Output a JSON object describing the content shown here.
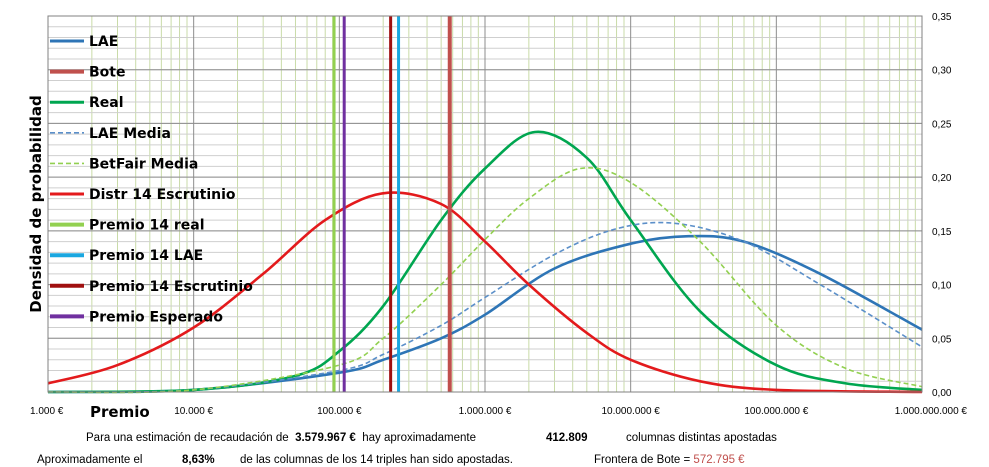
{
  "chart_data": {
    "type": "line",
    "xscale": "log",
    "xlim": [
      1000,
      1000000000
    ],
    "ylim": [
      0,
      0.35
    ],
    "ylabel": "Densidad de probabilidad",
    "xlabel": "Premio",
    "y_axis_side": "right",
    "grid": true,
    "legend_position": "top-left",
    "x_tick_labels": [
      "1.000 €",
      "10.000 €",
      "100.000 €",
      "1.000.000 €",
      "10.000.000 €",
      "100.000.000 €",
      "1.000.000.000 €"
    ],
    "x_tick_values": [
      1000,
      10000,
      100000,
      1000000,
      10000000,
      100000000,
      1000000000
    ],
    "y_tick_labels": [
      "0,00",
      "0,05",
      "0,10",
      "0,15",
      "0,20",
      "0,25",
      "0,30",
      "0,35"
    ],
    "y_tick_values": [
      0,
      0.05,
      0.1,
      0.15,
      0.2,
      0.25,
      0.3,
      0.35
    ],
    "series": [
      {
        "name": "LAE",
        "kind": "curve",
        "color": "#2e75b6",
        "dash": false,
        "x": [
          1000,
          10000,
          100000,
          200000,
          500000,
          1000000,
          3000000,
          10000000,
          25000000,
          60000000,
          200000000,
          1000000000
        ],
        "y": [
          0.0,
          0.002,
          0.018,
          0.03,
          0.05,
          0.072,
          0.115,
          0.138,
          0.145,
          0.14,
          0.11,
          0.058
        ]
      },
      {
        "name": "Bote",
        "kind": "vline",
        "color": "#c0504d",
        "value": 572795
      },
      {
        "name": "Real",
        "kind": "curve",
        "color": "#00a650",
        "dash": false,
        "x": [
          1000,
          10000,
          50000,
          100000,
          200000,
          500000,
          1000000,
          2200000,
          5000000,
          10000000,
          30000000,
          100000000,
          300000000,
          1000000000
        ],
        "y": [
          0.0,
          0.002,
          0.015,
          0.038,
          0.08,
          0.16,
          0.208,
          0.242,
          0.218,
          0.16,
          0.075,
          0.025,
          0.008,
          0.002
        ]
      },
      {
        "name": "LAE Media",
        "kind": "curve",
        "color": "#5b8fc9",
        "dash": true,
        "x": [
          1000,
          10000,
          100000,
          200000,
          500000,
          1000000,
          3000000,
          8000000,
          20000000,
          60000000,
          200000000,
          1000000000
        ],
        "y": [
          0.0,
          0.002,
          0.02,
          0.035,
          0.062,
          0.088,
          0.128,
          0.152,
          0.157,
          0.14,
          0.1,
          0.042
        ]
      },
      {
        "name": "BetFair Media",
        "kind": "curve",
        "color": "#92d050",
        "dash": true,
        "x": [
          1000,
          10000,
          100000,
          200000,
          500000,
          1000000,
          2000000,
          4500000,
          10000000,
          30000000,
          100000000,
          300000000,
          1000000000
        ],
        "y": [
          0.0,
          0.002,
          0.025,
          0.05,
          0.1,
          0.142,
          0.18,
          0.208,
          0.195,
          0.14,
          0.062,
          0.022,
          0.005
        ]
      },
      {
        "name": "Distr 14 Escrutinio",
        "kind": "curve",
        "color": "#e31a1c",
        "dash": false,
        "x": [
          1000,
          3000,
          10000,
          30000,
          80000,
          200000,
          500000,
          1000000,
          2000000,
          5000000,
          10000000,
          30000000,
          100000000,
          1000000000
        ],
        "y": [
          0.008,
          0.025,
          0.06,
          0.11,
          0.16,
          0.185,
          0.175,
          0.14,
          0.1,
          0.055,
          0.03,
          0.01,
          0.002,
          0.0
        ]
      },
      {
        "name": "Premio 14 real",
        "kind": "vline",
        "color": "#92d050",
        "value": 92000
      },
      {
        "name": "Premio 14 LAE",
        "kind": "vline",
        "color": "#1aa7e0",
        "value": 255000
      },
      {
        "name": "Premio 14 Escrutinio",
        "kind": "vline",
        "color": "#a01010",
        "value": 225000
      },
      {
        "name": "Premio Esperado",
        "kind": "vline",
        "color": "#7030a0",
        "value": 108000
      }
    ]
  },
  "footer": {
    "line1": {
      "prefix": "Para  una estimación de recaudación de",
      "amount": "3.579.967 €",
      "mid": "hay aproximadamente",
      "count": "412.809",
      "suffix": "columnas distintas apostadas"
    },
    "line2": {
      "prefix": "Aproximadamente el",
      "percent": "8,63%",
      "mid": "de las columnas de los 14 triples han sido apostadas.",
      "frontera_label": "Frontera de Bote =",
      "frontera_value": "572.795 €"
    }
  }
}
